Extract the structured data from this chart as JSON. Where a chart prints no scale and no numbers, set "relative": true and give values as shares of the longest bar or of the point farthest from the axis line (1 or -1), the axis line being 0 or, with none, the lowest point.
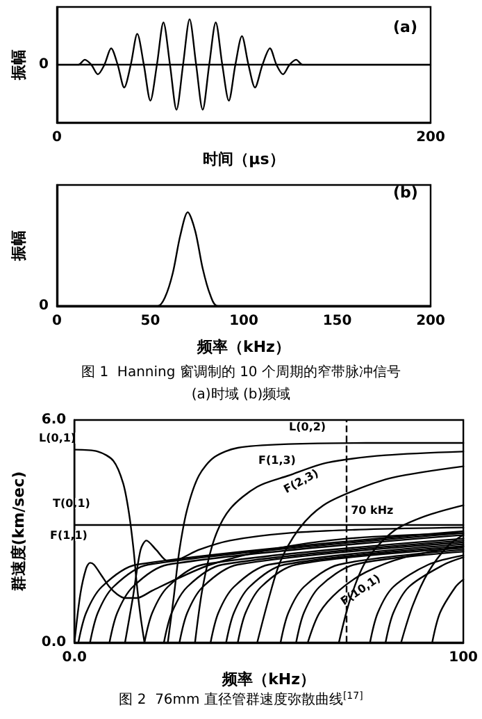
{
  "chart_data": [
    {
      "type": "line",
      "xlabel": "时间（μs）",
      "ylabel": "振幅",
      "relative": true,
      "xlim": [
        0,
        200
      ],
      "xticks": [
        0,
        200
      ],
      "ref_lines": [
        {
          "axis": "y",
          "value": 0,
          "line_style": "solid",
          "color": "#000000"
        }
      ],
      "annotations": [
        "(a)",
        "0"
      ],
      "series": [
        {
          "color": "#000000",
          "x": [
            0,
            8,
            11.5,
            14.9,
            18.4,
            21.9,
            25.4,
            29,
            32.5,
            36,
            39.5,
            43,
            46.5,
            50,
            53.5,
            57,
            60.5,
            64,
            67.5,
            71,
            74.5,
            78,
            81.5,
            85,
            88.5,
            92,
            95.5,
            99,
            102.5,
            106,
            110,
            114,
            117.5,
            121,
            124.5,
            128,
            131.5,
            135,
            200
          ],
          "values": [
            0,
            0,
            0,
            0.11,
            0,
            -0.21,
            0,
            0.36,
            0,
            -0.5,
            0,
            0.68,
            0,
            -0.79,
            0,
            0.93,
            0,
            -0.99,
            0,
            1,
            0,
            -0.99,
            0,
            0.93,
            0,
            -0.79,
            0,
            0.63,
            0,
            -0.5,
            0,
            0.36,
            0,
            -0.21,
            0,
            0.11,
            0,
            0,
            0
          ]
        }
      ]
    },
    {
      "type": "line",
      "xlabel": "频率（kHz）",
      "ylabel": "振幅",
      "relative": true,
      "xlim": [
        0,
        200
      ],
      "xticks": [
        0,
        50,
        100,
        150,
        200
      ],
      "annotations": [
        "(b)",
        "0",
        "图 1  Hanning 窗调制的 10 个周期的窄带脉冲信号",
        "(a)时域 (b)频域"
      ],
      "series": [
        {
          "color": "#000000",
          "x": [
            0,
            54,
            58,
            62,
            66,
            70,
            74,
            78,
            82,
            86,
            200
          ],
          "values": [
            0,
            0,
            0.1,
            0.35,
            0.75,
            1,
            0.8,
            0.4,
            0.12,
            0,
            0
          ]
        }
      ]
    },
    {
      "type": "line",
      "xlabel": "频率（kHz）",
      "ylabel": "群速度(km/sec)",
      "xlim": [
        0,
        100
      ],
      "ylim": [
        0,
        6
      ],
      "xticks": [
        {
          "value": 0,
          "label": "0.0"
        },
        100
      ],
      "yticks": [
        {
          "value": 0,
          "label": "0.0"
        },
        {
          "value": 6,
          "label": "6.0"
        }
      ],
      "ref_lines": [
        {
          "axis": "x",
          "value": 70,
          "label": "70 kHz",
          "line_style": "dashed",
          "color": "#000000"
        }
      ],
      "annotations": [
        "图 2  76mm 直径管群速度弥散曲线$^{[17]}$",
        "L(0,1)",
        "L(0,2)",
        "F(1,3)",
        "F(2,3)",
        "T(0,1)",
        "F(1,1)",
        "F(10,1)"
      ],
      "series": [
        {
          "color": "#000000",
          "x": [
            0,
            6,
            10,
            12.5,
            14,
            15.2,
            16,
            17,
            18
          ],
          "values": [
            5.2,
            5.15,
            4.9,
            4.3,
            3.5,
            2.5,
            1.6,
            0.7,
            0
          ]
        },
        {
          "color": "#000000",
          "x": [
            13,
            15,
            17,
            18.5,
            21,
            24,
            27,
            32,
            40,
            55,
            75,
            100
          ],
          "values": [
            0,
            1.2,
            2.5,
            2.75,
            2.5,
            2.2,
            2.25,
            2.5,
            2.75,
            2.95,
            3.05,
            3.1
          ]
        },
        {
          "color": "#000000",
          "x": [
            24,
            25.5,
            27,
            29,
            32,
            36,
            42,
            55,
            75,
            100
          ],
          "values": [
            0,
            1.2,
            2.5,
            3.6,
            4.5,
            5,
            5.25,
            5.35,
            5.38,
            5.38
          ]
        },
        {
          "color": "#000000",
          "x": [
            31,
            33,
            36,
            40,
            47,
            55,
            65,
            80,
            100
          ],
          "values": [
            0,
            1.5,
            2.8,
            3.6,
            4.2,
            4.5,
            4.85,
            5.05,
            5.15
          ]
        },
        {
          "color": "#000000",
          "x": [
            47,
            50,
            53,
            58,
            64,
            72,
            82,
            100
          ],
          "values": [
            0,
            1.2,
            2.2,
            3.1,
            3.7,
            4.1,
            4.45,
            4.75
          ]
        },
        {
          "color": "#000000",
          "x": [
            0,
            100
          ],
          "values": [
            3.17,
            3.17
          ]
        },
        {
          "color": "#000000",
          "x": [
            0,
            1.5,
            3,
            4,
            5,
            7,
            9,
            11,
            13,
            16,
            20,
            26,
            35,
            50,
            70,
            100
          ],
          "values": [
            0,
            1.3,
            2,
            2.15,
            2.1,
            1.8,
            1.5,
            1.3,
            1.2,
            1.2,
            1.4,
            1.7,
            2.1,
            2.5,
            2.8,
            2.95
          ]
        },
        {
          "color": "#000000",
          "x": [
            68,
            71,
            75,
            82,
            90,
            100
          ],
          "values": [
            0,
            1.2,
            2.2,
            3,
            3.4,
            3.7
          ]
        },
        {
          "color": "#000000",
          "x": [
            84,
            87,
            91,
            96,
            100
          ],
          "values": [
            0,
            1,
            1.9,
            2.6,
            2.9
          ]
        },
        {
          "color": "#000000",
          "x": [
            60,
            63,
            68,
            75,
            85,
            100
          ],
          "values": [
            0,
            0.8,
            1.4,
            1.9,
            2.3,
            2.6
          ]
        },
        {
          "color": "#000000",
          "x": [
            1,
            3,
            7,
            16,
            100
          ],
          "values": [
            0,
            0.8,
            1.5,
            2.1,
            3
          ]
        },
        {
          "color": "#000000",
          "x": [
            4,
            6,
            10,
            19,
            100
          ],
          "values": [
            0,
            0.8,
            1.5,
            2.1,
            2.95
          ]
        },
        {
          "color": "#000000",
          "x": [
            9,
            11,
            15,
            24,
            100
          ],
          "values": [
            0,
            0.8,
            1.5,
            2.1,
            2.9
          ]
        },
        {
          "color": "#000000",
          "x": [
            18,
            20,
            24,
            33,
            100
          ],
          "values": [
            0,
            0.8,
            1.5,
            2.1,
            2.8
          ]
        },
        {
          "color": "#000000",
          "x": [
            23,
            25,
            29,
            38,
            100
          ],
          "values": [
            0,
            0.8,
            1.5,
            2.1,
            2.75
          ]
        },
        {
          "color": "#000000",
          "x": [
            27,
            29,
            33,
            42,
            100
          ],
          "values": [
            0,
            0.8,
            1.5,
            2.1,
            2.7
          ]
        },
        {
          "color": "#000000",
          "x": [
            35,
            37,
            41,
            50,
            100
          ],
          "values": [
            0,
            0.8,
            1.5,
            2.1,
            2.65
          ]
        },
        {
          "color": "#000000",
          "x": [
            39,
            41,
            45,
            54,
            100
          ],
          "values": [
            0,
            0.8,
            1.5,
            2.1,
            2.6
          ]
        },
        {
          "color": "#000000",
          "x": [
            42,
            44,
            48,
            57,
            100
          ],
          "values": [
            0,
            0.8,
            1.5,
            2.1,
            2.55
          ]
        },
        {
          "color": "#000000",
          "x": [
            53,
            55,
            59,
            68,
            100
          ],
          "values": [
            0,
            0.8,
            1.5,
            2.1,
            2.5
          ]
        },
        {
          "color": "#000000",
          "x": [
            57,
            59,
            63,
            72,
            100
          ],
          "values": [
            0,
            0.8,
            1.5,
            2.1,
            2.45
          ]
        },
        {
          "color": "#000000",
          "x": [
            76,
            78,
            82,
            91,
            100
          ],
          "values": [
            0,
            0.8,
            1.5,
            2.1,
            2.35
          ]
        },
        {
          "color": "#000000",
          "x": [
            80,
            82,
            86,
            95,
            100
          ],
          "values": [
            0,
            0.8,
            1.5,
            2.1,
            2.3
          ]
        },
        {
          "color": "#000000",
          "x": [
            92,
            94,
            98,
            100
          ],
          "values": [
            0,
            0.8,
            1.5,
            1.7
          ]
        }
      ]
    }
  ]
}
